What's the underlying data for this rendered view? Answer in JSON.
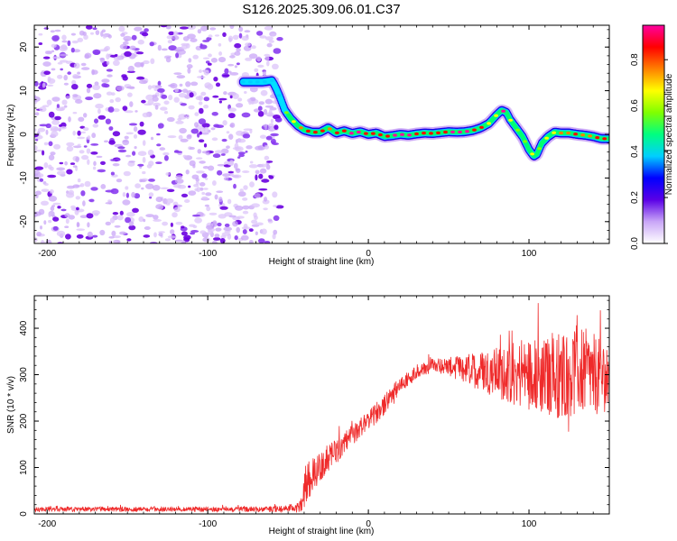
{
  "title": "S126.2025.309.06.01.C37",
  "chart_data": [
    {
      "type": "heatmap",
      "name": "spectrogram",
      "xlabel": "Height of straight line (km)",
      "ylabel": "Frequency (Hz)",
      "xlim": [
        -208,
        150
      ],
      "ylim": [
        -25,
        25
      ],
      "xticks": [
        -200,
        -100,
        0,
        100
      ],
      "yticks": [
        -20,
        -10,
        0,
        10,
        20
      ],
      "noise_region_x": [
        -208,
        -55
      ],
      "ridge": {
        "x": [
          -78,
          -72,
          -66,
          -60,
          -58,
          -55,
          -52,
          -48,
          -44,
          -40,
          -35,
          -30,
          -25,
          -20,
          -15,
          -10,
          -5,
          0,
          5,
          10,
          15,
          20,
          25,
          30,
          35,
          40,
          45,
          50,
          55,
          60,
          65,
          70,
          75,
          80,
          83,
          86,
          88,
          92,
          96,
          100,
          103,
          105,
          108,
          112,
          116,
          120,
          125,
          130,
          135,
          140,
          145,
          150
        ],
        "y": [
          12,
          12,
          12,
          12.3,
          11,
          8.5,
          5.5,
          3.5,
          2,
          1,
          0.5,
          0.5,
          1.5,
          0.3,
          0.8,
          0.2,
          0.6,
          0,
          0.3,
          -0.5,
          -0.3,
          0,
          -0.2,
          0.1,
          0.3,
          0.2,
          0.4,
          0.6,
          0.5,
          0.6,
          0.9,
          1.5,
          2.5,
          4.5,
          5.5,
          5,
          3.5,
          1.5,
          -0.5,
          -3.5,
          -5,
          -4.5,
          -2,
          -0.5,
          0.5,
          0.3,
          0.3,
          0,
          -0.2,
          -0.5,
          -1,
          -1
        ],
        "amplitude": [
          0.35,
          0.35,
          0.35,
          0.35,
          0.3,
          0.4,
          0.5,
          0.6,
          0.7,
          0.9,
          0.85,
          0.9,
          0.7,
          0.9,
          0.85,
          0.95,
          0.9,
          0.9,
          0.9,
          0.85,
          0.9,
          0.95,
          0.95,
          0.9,
          0.9,
          0.85,
          0.9,
          0.9,
          0.95,
          0.95,
          0.9,
          0.85,
          0.7,
          0.7,
          0.95,
          0.95,
          0.7,
          0.6,
          0.6,
          0.6,
          0.65,
          0.6,
          0.6,
          0.65,
          0.7,
          0.75,
          0.8,
          0.85,
          0.75,
          0.8,
          0.85,
          0.85
        ]
      }
    },
    {
      "type": "colorbar",
      "label": "Normalized spectral amplitude",
      "range": [
        0,
        0.95
      ],
      "ticks": [
        "0.0",
        "0.2",
        "0.4",
        "0.6",
        "0.8"
      ],
      "tick_values": [
        0,
        0.2,
        0.4,
        0.6,
        0.8
      ],
      "colors": [
        "#ffffff",
        "#c9a6f7",
        "#5a00e6",
        "#0000ff",
        "#00cfff",
        "#00ff80",
        "#80ff00",
        "#ffff00",
        "#ff8000",
        "#ff0000",
        "#ff00a0"
      ]
    },
    {
      "type": "line",
      "name": "snr",
      "xlabel": "Height of straight line (km)",
      "ylabel": "SNR (10 * v/v)",
      "xlim": [
        -208,
        150
      ],
      "ylim": [
        0,
        470
      ],
      "xticks": [
        -200,
        -100,
        0,
        100
      ],
      "yticks": [
        0,
        100,
        200,
        300,
        400
      ],
      "color": "#ef2a2a",
      "envelope": {
        "x": [
          -208,
          -100,
          -60,
          -45,
          -42,
          -40,
          -35,
          -30,
          -20,
          -10,
          0,
          10,
          20,
          30,
          40,
          50,
          60,
          70,
          80,
          90,
          100,
          110,
          120,
          130,
          140,
          150
        ],
        "mean": [
          10,
          10,
          10,
          12,
          20,
          60,
          85,
          100,
          135,
          170,
          200,
          235,
          280,
          305,
          320,
          318,
          310,
          310,
          305,
          300,
          300,
          295,
          300,
          310,
          300,
          290
        ],
        "spread": [
          5,
          5,
          6,
          8,
          15,
          50,
          40,
          30,
          28,
          22,
          22,
          22,
          18,
          15,
          15,
          20,
          30,
          45,
          55,
          70,
          80,
          85,
          95,
          100,
          90,
          70
        ]
      }
    }
  ]
}
